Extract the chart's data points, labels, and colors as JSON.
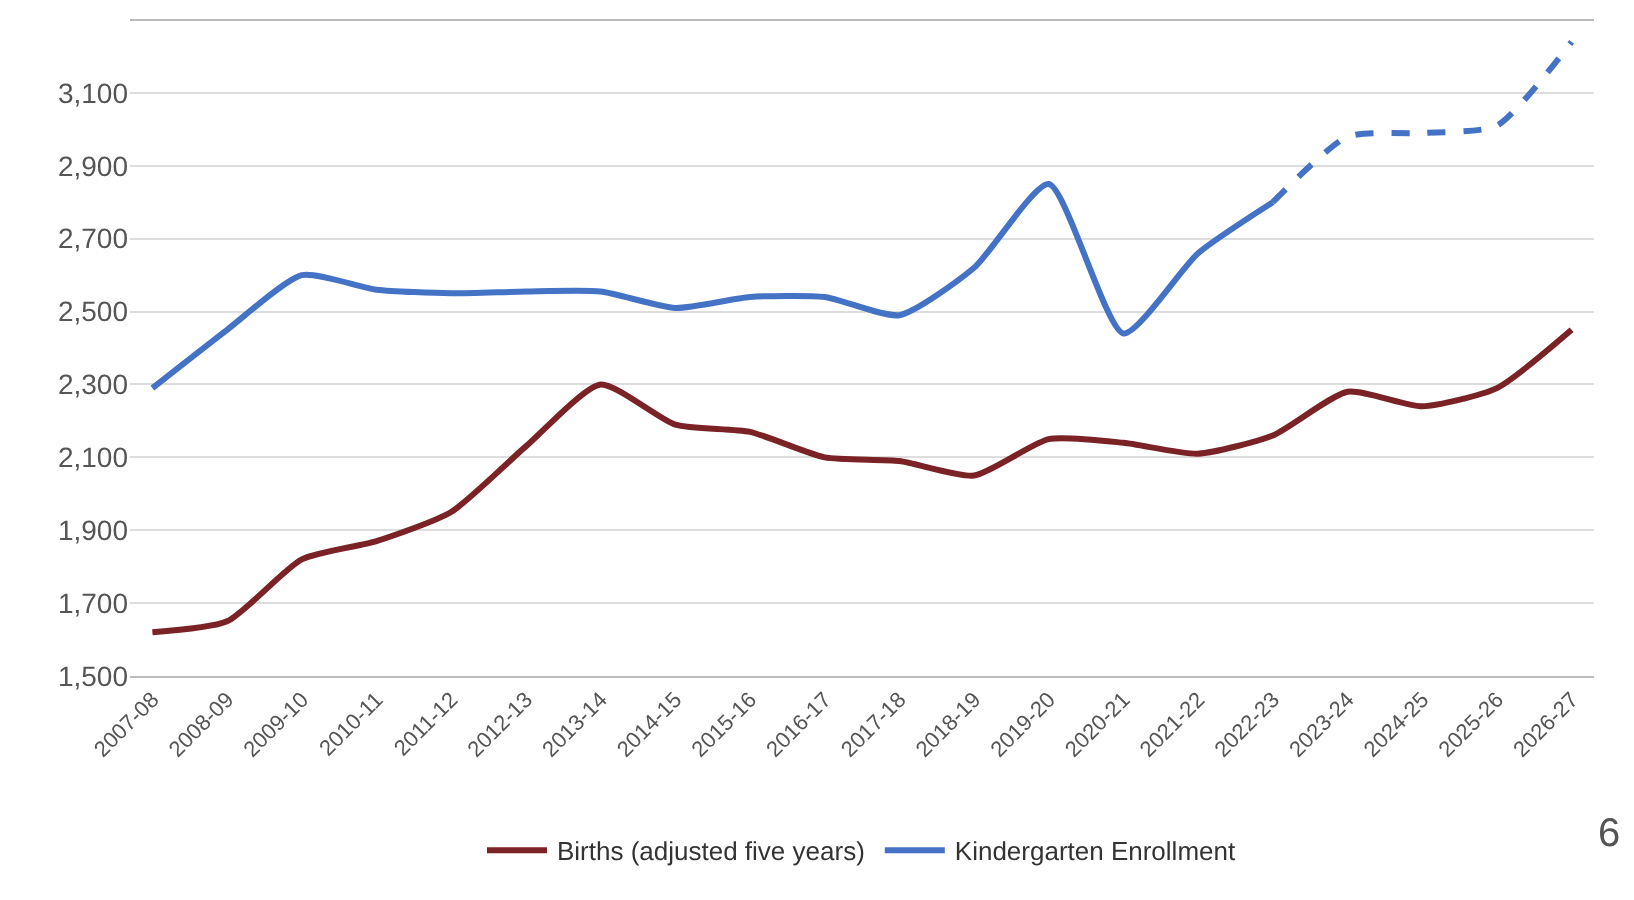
{
  "chart_data": {
    "type": "line",
    "categories": [
      "2007-08",
      "2008-09",
      "2009-10",
      "2010-11",
      "2011-12",
      "2012-13",
      "2013-14",
      "2014-15",
      "2015-16",
      "2016-17",
      "2017-18",
      "2018-19",
      "2019-20",
      "2020-21",
      "2021-22",
      "2022-23",
      "2023-24",
      "2024-25",
      "2025-26",
      "2026-27"
    ],
    "series": [
      {
        "name": "Births (adjusted five years)",
        "color": "#7b2226",
        "line_style": "solid",
        "values": [
          1620,
          1650,
          1820,
          1870,
          1950,
          2130,
          2300,
          2190,
          2170,
          2100,
          2090,
          2050,
          2150,
          2140,
          2110,
          2160,
          2280,
          2240,
          2290,
          2450
        ]
      },
      {
        "name": "Kindergarten Enrollment",
        "color": "#4472c4",
        "line_style": "solid",
        "values": [
          2290,
          2450,
          2600,
          2560,
          2550,
          2555,
          2555,
          2510,
          2540,
          2540,
          2490,
          2620,
          2850,
          2440,
          2660,
          2800,
          null,
          null,
          null,
          null
        ]
      },
      {
        "color": "#4472c4",
        "line_style": "dashed",
        "values": [
          null,
          null,
          null,
          null,
          null,
          null,
          null,
          null,
          null,
          null,
          null,
          null,
          null,
          null,
          null,
          2800,
          2980,
          2990,
          3010,
          3240
        ]
      }
    ],
    "ylim": [
      1500,
      3300
    ],
    "yticks": [
      {
        "value": 1500,
        "label": "1,500"
      },
      {
        "value": 1700,
        "label": "1,700"
      },
      {
        "value": 1900,
        "label": "1,900"
      },
      {
        "value": 2100,
        "label": "2,100"
      },
      {
        "value": 2300,
        "label": "2,300"
      },
      {
        "value": 2500,
        "label": "2,500"
      },
      {
        "value": 2700,
        "label": "2,700"
      },
      {
        "value": 2900,
        "label": "2,900"
      },
      {
        "value": 3100,
        "label": "3,100"
      }
    ],
    "grid": "y",
    "legend": "bottom",
    "marker": "none",
    "annotations": [
      "6"
    ]
  }
}
